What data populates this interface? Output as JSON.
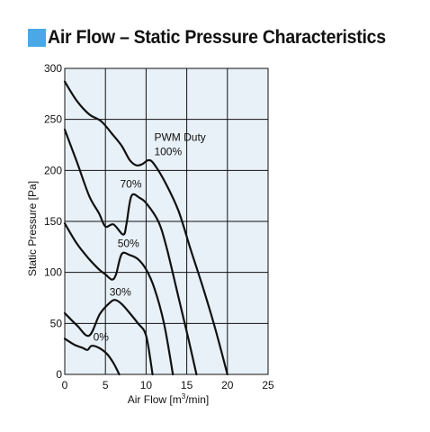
{
  "chart_data": {
    "type": "line",
    "title": "Air Flow – Static Pressure Characteristics",
    "xlabel_main": "Air Flow [m",
    "xlabel_sup": "3",
    "xlabel_end": "/min]",
    "ylabel": "Static Pressure [Pa]",
    "xlim": [
      0,
      25
    ],
    "ylim": [
      0,
      300
    ],
    "xticks": [
      0,
      5,
      10,
      15,
      20,
      25
    ],
    "yticks": [
      0,
      50,
      100,
      150,
      200,
      250,
      300
    ],
    "grid": true,
    "background_color": "#e8f1f8",
    "accent_color": "#4aa8e6",
    "annotations": [
      {
        "id": "pwm-duty",
        "text": "PWM Duty",
        "x": 11.0,
        "y": 229
      },
      {
        "id": "duty-100",
        "text": "100%",
        "x": 11.0,
        "y": 215
      },
      {
        "id": "duty-70",
        "text": "70%",
        "x": 6.8,
        "y": 183
      },
      {
        "id": "duty-50",
        "text": "50%",
        "x": 6.5,
        "y": 125
      },
      {
        "id": "duty-30",
        "text": "30%",
        "x": 5.5,
        "y": 77
      },
      {
        "id": "duty-0",
        "text": "0%",
        "x": 3.5,
        "y": 33
      }
    ],
    "series": [
      {
        "id": "100",
        "points": [
          [
            0,
            287
          ],
          [
            1.5,
            268
          ],
          [
            3,
            255
          ],
          [
            4.5,
            248
          ],
          [
            5.8,
            236
          ],
          [
            7,
            224
          ],
          [
            8,
            210
          ],
          [
            8.8,
            205
          ],
          [
            9.5,
            206
          ],
          [
            10.3,
            210
          ],
          [
            11,
            206
          ],
          [
            12.5,
            186
          ],
          [
            14,
            160
          ],
          [
            15.5,
            122
          ],
          [
            17,
            85
          ],
          [
            18.5,
            45
          ],
          [
            20,
            0
          ]
        ]
      },
      {
        "id": "70",
        "points": [
          [
            0,
            240
          ],
          [
            1.5,
            208
          ],
          [
            3,
            175
          ],
          [
            4.2,
            158
          ],
          [
            5,
            145
          ],
          [
            6,
            147
          ],
          [
            7.2,
            137
          ],
          [
            7.6,
            148
          ],
          [
            8.2,
            175
          ],
          [
            9.2,
            173
          ],
          [
            10,
            168
          ],
          [
            11.5,
            150
          ],
          [
            12.5,
            125
          ],
          [
            14,
            75
          ],
          [
            15.2,
            35
          ],
          [
            16.2,
            0
          ]
        ]
      },
      {
        "id": "50",
        "points": [
          [
            0,
            148
          ],
          [
            1.5,
            128
          ],
          [
            3,
            113
          ],
          [
            4.2,
            103
          ],
          [
            5,
            98
          ],
          [
            5.8,
            93
          ],
          [
            6.3,
            98
          ],
          [
            7,
            118
          ],
          [
            8,
            117
          ],
          [
            9,
            113
          ],
          [
            10,
            103
          ],
          [
            11,
            85
          ],
          [
            12.2,
            50
          ],
          [
            13.3,
            0
          ]
        ]
      },
      {
        "id": "30",
        "points": [
          [
            0,
            60
          ],
          [
            1.5,
            48
          ],
          [
            3,
            38
          ],
          [
            4.3,
            59
          ],
          [
            5.5,
            70
          ],
          [
            6.2,
            73
          ],
          [
            7,
            69
          ],
          [
            8,
            60
          ],
          [
            9,
            50
          ],
          [
            10,
            38
          ],
          [
            10.8,
            0
          ]
        ]
      },
      {
        "id": "0",
        "points": [
          [
            0,
            35
          ],
          [
            1.2,
            29
          ],
          [
            2.2,
            26
          ],
          [
            2.8,
            24
          ],
          [
            3.3,
            28
          ],
          [
            4.2,
            26
          ],
          [
            5.2,
            20
          ],
          [
            6,
            11
          ],
          [
            6.7,
            0
          ]
        ]
      }
    ]
  }
}
